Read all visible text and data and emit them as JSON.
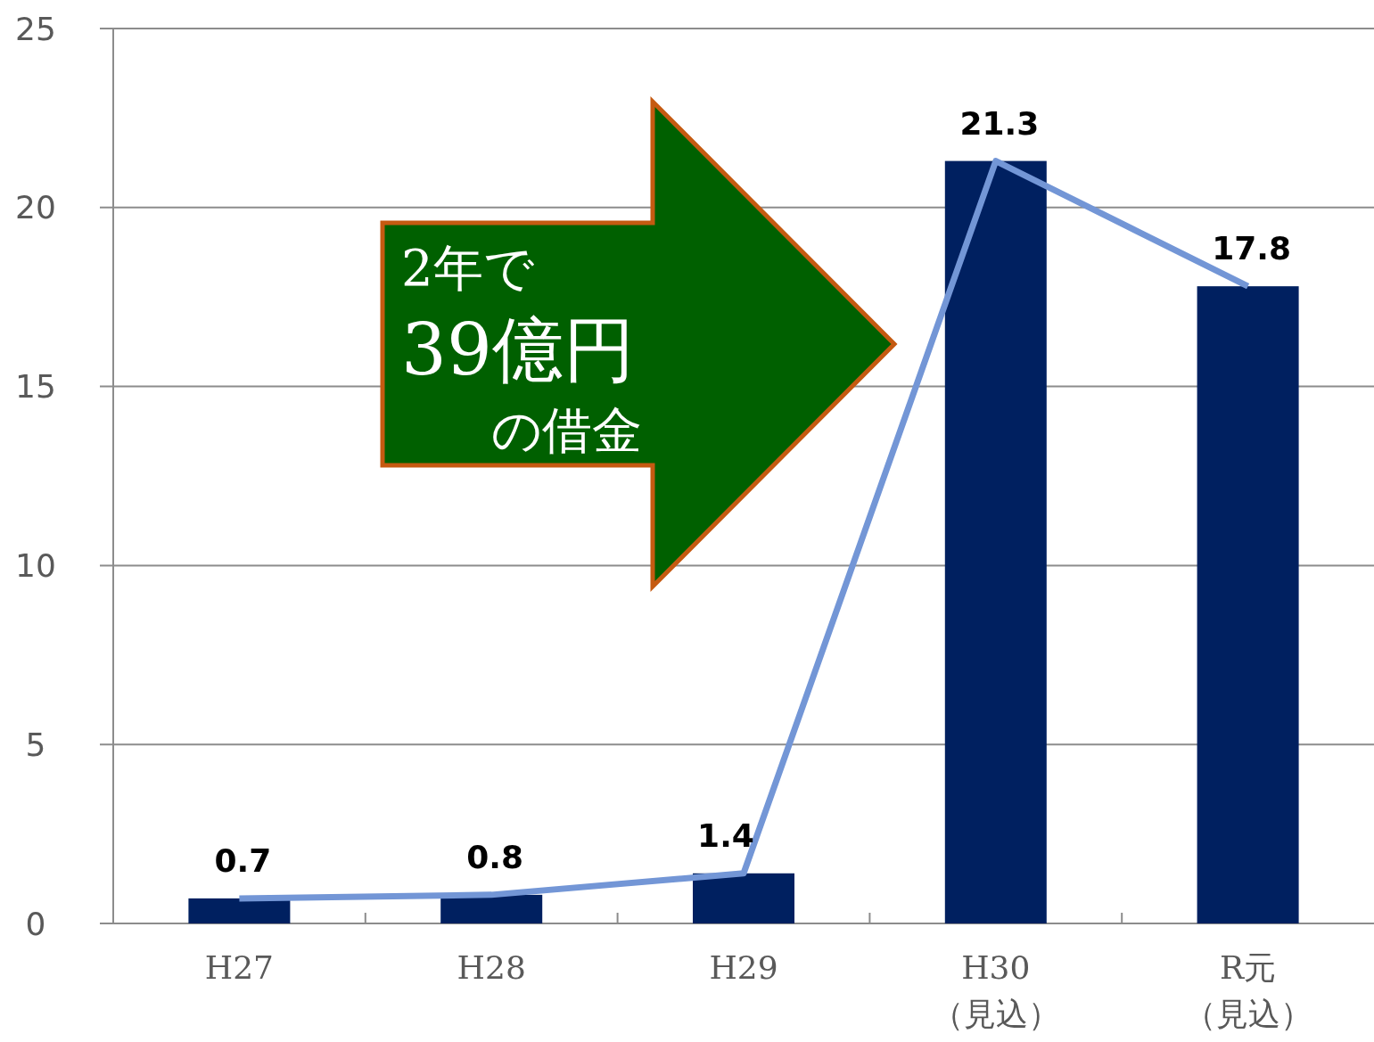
{
  "chart_data": {
    "type": "bar",
    "categories": [
      "H27",
      "H28",
      "H29",
      "H30（見込）",
      "R元（見込）"
    ],
    "series": [
      {
        "color": "#002060",
        "values": [
          0.7,
          0.8,
          1.4,
          21.3,
          17.8
        ],
        "value_labels": [
          "0.7",
          "0.8",
          "1.4",
          "21.3",
          "17.8"
        ]
      },
      {
        "type": "line",
        "color": "#7396d6",
        "values": [
          0.7,
          0.8,
          1.4,
          21.3,
          17.8
        ]
      }
    ],
    "ylim": [
      0,
      25
    ],
    "yticks": [
      0,
      5,
      10,
      15,
      20,
      25
    ],
    "grid": "y",
    "marker": "none",
    "line_style": "solid",
    "annotations": [
      "2年で",
      "39億円",
      "の借金"
    ]
  }
}
